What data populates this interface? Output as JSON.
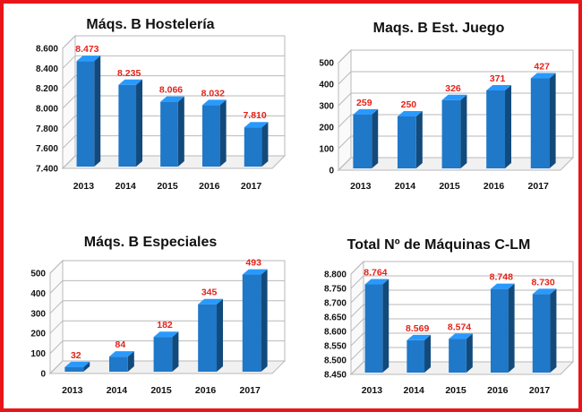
{
  "chart_data": [
    {
      "type": "bar",
      "title": "Máqs. B Hostelería",
      "categories": [
        "2013",
        "2014",
        "2015",
        "2016",
        "2017"
      ],
      "values": [
        8473,
        8235,
        8066,
        8032,
        7810
      ],
      "value_labels": [
        "8.473",
        "8.235",
        "8.066",
        "8.032",
        "7.810"
      ],
      "ylim": [
        7400,
        8600
      ],
      "yticks": [
        7400,
        7600,
        7800,
        8000,
        8200,
        8400,
        8600
      ],
      "ytick_labels": [
        "7.400",
        "7.600",
        "7.800",
        "8.000",
        "8.200",
        "8.400",
        "8.600"
      ],
      "grid": true,
      "bar_color": "#1f78c8",
      "label_color": "#e2231a"
    },
    {
      "type": "bar",
      "title": "Maqs. B Est. Juego",
      "categories": [
        "2013",
        "2014",
        "2015",
        "2016",
        "2017"
      ],
      "values": [
        259,
        250,
        326,
        371,
        427
      ],
      "value_labels": [
        "259",
        "250",
        "326",
        "371",
        "427"
      ],
      "ylim": [
        0,
        500
      ],
      "yticks": [
        0,
        100,
        200,
        300,
        400,
        500
      ],
      "ytick_labels": [
        "0",
        "100",
        "200",
        "300",
        "400",
        "500"
      ],
      "grid": true,
      "bar_color": "#1f78c8",
      "label_color": "#e2231a"
    },
    {
      "type": "bar",
      "title": "Máqs. B Especiales",
      "categories": [
        "2013",
        "2014",
        "2015",
        "2016",
        "2017"
      ],
      "values": [
        32,
        84,
        182,
        345,
        493
      ],
      "value_labels": [
        "32",
        "84",
        "182",
        "345",
        "493"
      ],
      "ylim": [
        0,
        500
      ],
      "yticks": [
        0,
        100,
        200,
        300,
        400,
        500
      ],
      "ytick_labels": [
        "0",
        "100",
        "200",
        "300",
        "400",
        "500"
      ],
      "grid": true,
      "bar_color": "#1f78c8",
      "label_color": "#e2231a"
    },
    {
      "type": "bar",
      "title": "Total Nº de Máquinas C-LM",
      "categories": [
        "2013",
        "2014",
        "2015",
        "2016",
        "2017"
      ],
      "values": [
        8764,
        8569,
        8574,
        8748,
        8730
      ],
      "value_labels": [
        "8.764",
        "8.569",
        "8.574",
        "8.748",
        "8.730"
      ],
      "ylim": [
        8450,
        8800
      ],
      "yticks": [
        8450,
        8500,
        8550,
        8600,
        8650,
        8700,
        8750,
        8800
      ],
      "ytick_labels": [
        "8.450",
        "8.500",
        "8.550",
        "8.600",
        "8.650",
        "8.700",
        "8.750",
        "8.800"
      ],
      "grid": true,
      "bar_color": "#1f78c8",
      "label_color": "#e2231a"
    }
  ]
}
